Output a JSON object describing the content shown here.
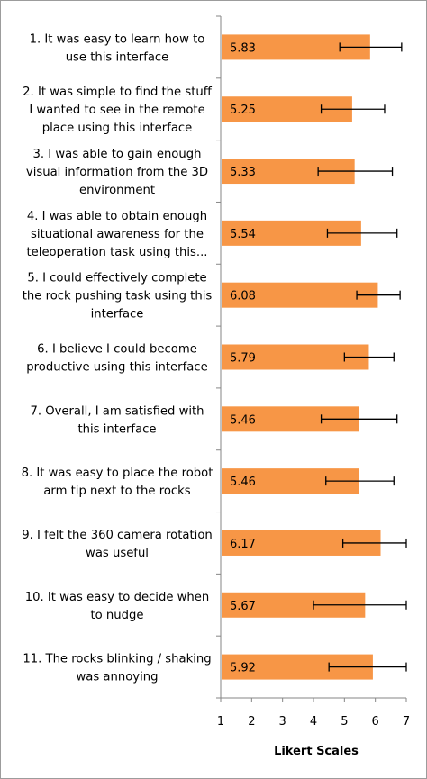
{
  "chart_data": {
    "type": "bar",
    "orientation": "horizontal",
    "categories": [
      [
        "1. It was easy to learn how to",
        "use this interface"
      ],
      [
        "2. It was simple to find the stuff",
        "I wanted to see in the remote",
        "place using this interface"
      ],
      [
        "3. I was able to gain enough",
        "visual information from the 3D",
        "environment"
      ],
      [
        "4. I was able to obtain enough",
        "situational awareness for the",
        "teleoperation task using this..."
      ],
      [
        "5. I could effectively complete",
        "the rock pushing task using this",
        "interface"
      ],
      [
        "6. I believe I could become",
        "productive using this interface"
      ],
      [
        "7. Overall, I am satisfied with",
        "this interface"
      ],
      [
        "8. It was easy to place the robot",
        "arm tip next to the rocks"
      ],
      [
        "9. I felt the 360 camera rotation",
        "was useful"
      ],
      [
        "10. It was easy to decide when",
        "to nudge"
      ],
      [
        "11. The rocks blinking / shaking",
        "was annoying"
      ]
    ],
    "values": [
      5.83,
      5.25,
      5.33,
      5.54,
      6.08,
      5.79,
      5.46,
      5.46,
      6.17,
      5.67,
      5.92
    ],
    "value_labels": [
      "5.83",
      "5.25",
      "5.33",
      "5.54",
      "6.08",
      "5.79",
      "5.46",
      "5.46",
      "6.17",
      "5.67",
      "5.92"
    ],
    "error_low": [
      4.85,
      4.25,
      4.15,
      4.45,
      5.4,
      5.0,
      4.25,
      4.4,
      4.95,
      4.0,
      4.5
    ],
    "error_high": [
      6.85,
      6.3,
      6.55,
      6.7,
      6.8,
      6.6,
      6.7,
      6.6,
      7.0,
      7.0,
      7.0
    ],
    "xlim": [
      1,
      7
    ],
    "xticks": [
      "1",
      "2",
      "3",
      "4",
      "5",
      "6",
      "7"
    ],
    "xlabel": "Likert Scales",
    "bar_color": "#F79646",
    "grid": false
  }
}
